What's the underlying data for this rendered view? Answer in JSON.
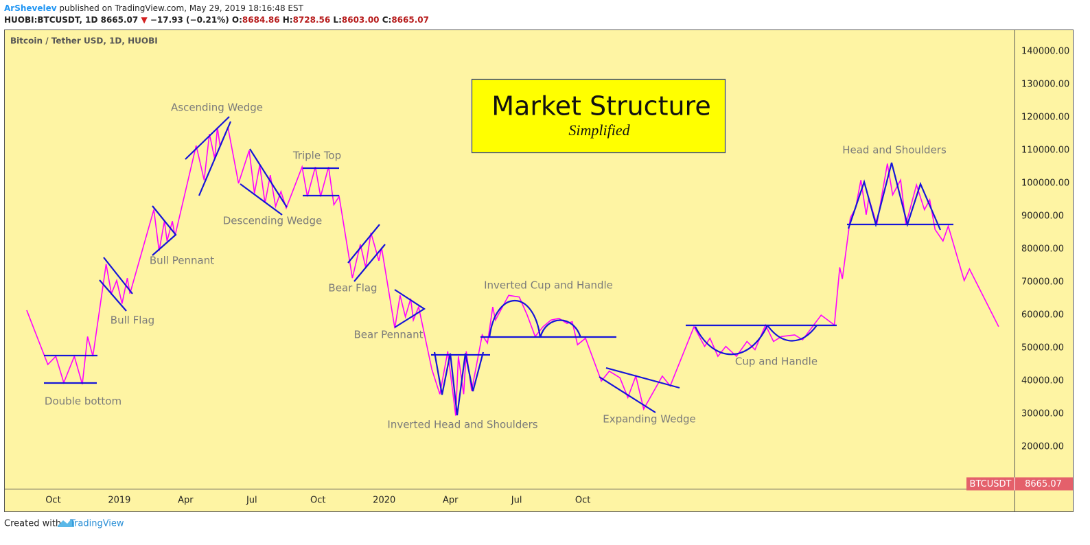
{
  "header": {
    "author": "ArShevelev",
    "published": "published on TradingView.com, May 29, 2019 18:16:48 EST",
    "symbol": "HUOBI:BTCUSDT, 1D",
    "price": "8665.07",
    "change_arrow": "▼",
    "change": "−17.93 (−0.21%)",
    "open_label": "O:",
    "open": "8684.86",
    "high_label": "H:",
    "high": "8728.56",
    "low_label": "L:",
    "low": "8603.00",
    "close_label": "C:",
    "close": "8665.07"
  },
  "chart_data": {
    "type": "line",
    "title": "Market Structure",
    "subtitle": "Simplified",
    "legend_title": "Bitcoin / Tether USD, 1D, HUOBI",
    "annotations": [
      "Ascending Wedge",
      "Triple Top",
      "Descending Wedge",
      "Bull Pennant",
      "Bull Flag",
      "Bear Flag",
      "Bear Pennant",
      "Double bottom",
      "Inverted Head and Shoulders",
      "Inverted Cup and Handle",
      "Expanding Wedge",
      "Cup and Handle",
      "Head and Shoulders"
    ],
    "xlim": [
      2018.57,
      2022.38
    ],
    "xticks": [
      {
        "value": 2018.75,
        "label": "Oct"
      },
      2019,
      {
        "value": 2019.25,
        "label": "Apr"
      },
      {
        "value": 2019.5,
        "label": "Jul"
      },
      {
        "value": 2019.75,
        "label": "Oct"
      },
      2020,
      {
        "value": 2020.25,
        "label": "Apr"
      },
      {
        "value": 2020.5,
        "label": "Jul"
      },
      {
        "value": 2020.75,
        "label": "Oct"
      }
    ],
    "ylim": [
      7300,
      146500
    ],
    "yticks": [
      {
        "value": 20000,
        "label": "20000.00"
      },
      {
        "value": 30000,
        "label": "30000.00"
      },
      {
        "value": 40000,
        "label": "40000.00"
      },
      {
        "value": 50000,
        "label": "50000.00"
      },
      {
        "value": 60000,
        "label": "60000.00"
      },
      {
        "value": 70000,
        "label": "70000.00"
      },
      {
        "value": 80000,
        "label": "80000.00"
      },
      {
        "value": 90000,
        "label": "90000.00"
      },
      {
        "value": 100000,
        "label": "100000.00"
      },
      {
        "value": 110000,
        "label": "110000.00"
      },
      {
        "value": 120000,
        "label": "120000.00"
      },
      {
        "value": 130000,
        "label": "130000.00"
      },
      {
        "value": 140000,
        "label": "140000.00"
      }
    ],
    "grid": false,
    "last_price": 8665.07,
    "last_price_color": "#e4606b",
    "series": [
      {
        "name": "BTCUSDT",
        "color": "#ff00ff",
        "x": [
          2018.65,
          2018.73,
          2018.76,
          2018.79,
          2018.83,
          2018.86,
          2018.88,
          2018.9,
          2018.95,
          2018.97,
          2018.99,
          2019.01,
          2019.03,
          2019.04,
          2019.13,
          2019.15,
          2019.17,
          2019.18,
          2019.2,
          2019.21,
          2019.29,
          2019.32,
          2019.34,
          2019.36,
          2019.37,
          2019.38,
          2019.41,
          2019.45,
          2019.49,
          2019.51,
          2019.53,
          2019.55,
          2019.57,
          2019.59,
          2019.61,
          2019.63,
          2019.69,
          2019.71,
          2019.74,
          2019.76,
          2019.79,
          2019.81,
          2019.83,
          2019.88,
          2019.91,
          2019.93,
          2019.95,
          2019.98,
          2019.99,
          2020.04,
          2020.06,
          2020.08,
          2020.1,
          2020.11,
          2020.13,
          2020.18,
          2020.21,
          2020.24,
          2020.27,
          2020.28,
          2020.3,
          2020.31,
          2020.33,
          2020.37,
          2020.39,
          2020.41,
          2020.42,
          2020.47,
          2020.51,
          2020.54,
          2020.57,
          2020.6,
          2020.63,
          2020.66,
          2020.69,
          2020.71,
          2020.73,
          2020.76,
          2020.82,
          2020.85,
          2020.89,
          2020.92,
          2020.95,
          2020.98,
          2021.05,
          2021.08,
          2021.17,
          2021.21,
          2021.23,
          2021.26,
          2021.29,
          2021.33,
          2021.37,
          2021.4,
          2021.44,
          2021.47,
          2021.5,
          2021.55,
          2021.58,
          2021.65,
          2021.7,
          2021.72,
          2021.73,
          2021.76,
          2021.78,
          2021.8,
          2021.82,
          2021.83,
          2021.86,
          2021.9,
          2021.92,
          2021.95,
          2021.97,
          2022.01,
          2022.04,
          2022.06,
          2022.08,
          2022.11,
          2022.13,
          2022.19,
          2022.21,
          2022.32
        ],
        "values": [
          61500,
          45000,
          47500,
          39500,
          47500,
          39000,
          53500,
          47500,
          75500,
          66500,
          70500,
          63500,
          71250,
          66500,
          92000,
          79500,
          88500,
          82500,
          88500,
          84000,
          111500,
          101000,
          115000,
          107500,
          117000,
          111500,
          117000,
          100000,
          110000,
          97000,
          105500,
          94000,
          102500,
          93000,
          97500,
          92500,
          105000,
          96000,
          105000,
          96000,
          105000,
          93500,
          96000,
          71250,
          81500,
          74500,
          85000,
          76500,
          80500,
          56000,
          66000,
          59500,
          65000,
          58500,
          62500,
          43500,
          36000,
          49000,
          29500,
          47500,
          36000,
          49000,
          37000,
          54000,
          51500,
          62500,
          58500,
          66000,
          65500,
          60000,
          53500,
          56500,
          58500,
          59000,
          57500,
          58000,
          51000,
          53000,
          40000,
          43000,
          41000,
          35000,
          41500,
          31500,
          41500,
          38500,
          56500,
          50500,
          53000,
          47500,
          50500,
          47500,
          52000,
          49500,
          57000,
          52000,
          53500,
          54000,
          52500,
          60000,
          57000,
          74500,
          71000,
          89500,
          92500,
          101000,
          90500,
          95500,
          87500,
          106000,
          96500,
          101000,
          87500,
          99500,
          92000,
          95000,
          86000,
          82500,
          87000,
          70500,
          74000,
          56500
        ]
      }
    ]
  },
  "footer": {
    "created_with": "Created with",
    "brand": "TradingView"
  }
}
